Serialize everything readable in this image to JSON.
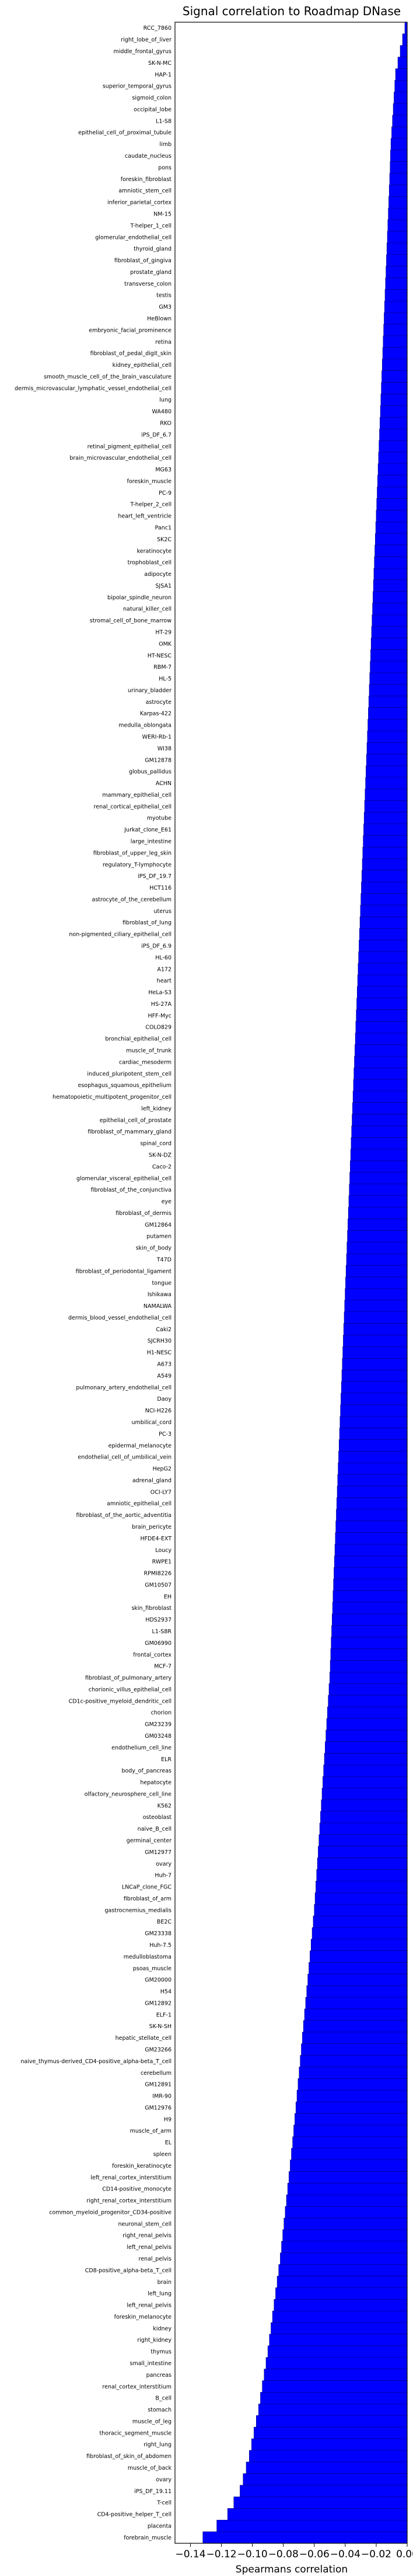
{
  "chart_data": {
    "type": "bar",
    "orientation": "horizontal",
    "title": "Signal correlation to Roadmap DNase",
    "xlabel": "Spearmans correlation",
    "ylabel": "",
    "xlim": [
      -0.15,
      0.0
    ],
    "xticks": [
      -0.14,
      -0.12,
      -0.1,
      -0.08,
      -0.06,
      -0.04,
      -0.02,
      0.0
    ],
    "xtick_labels": [
      "−0.14",
      "−0.12",
      "−0.10",
      "−0.08",
      "−0.06",
      "−0.04",
      "−0.02",
      "0.00"
    ],
    "grid": false,
    "bar_color": "#0000ff",
    "bar_edge_color": "#000080",
    "categories": [
      "RCC_7860",
      "right_lobe_of_liver",
      "middle_frontal_gyrus",
      "SK-N-MC",
      "HAP-1",
      "superior_temporal_gyrus",
      "sigmoid_colon",
      "occipital_lobe",
      "L1-S8",
      "epithelial_cell_of_proximal_tubule",
      "limb",
      "caudate_nucleus",
      "pons",
      "foreskin_fibroblast",
      "amniotic_stem_cell",
      "inferior_parietal_cortex",
      "NM-15",
      "T-helper_1_cell",
      "glomerular_endothelial_cell",
      "thyroid_gland",
      "fibroblast_of_gingiva",
      "prostate_gland",
      "transverse_colon",
      "testis",
      "GM3",
      "HeBlown",
      "embryonic_facial_prominence",
      "retina",
      "fibroblast_of_pedal_digit_skin",
      "kidney_epithelial_cell",
      "smooth_muscle_cell_of_the_brain_vasculature",
      "dermis_microvascular_lymphatic_vessel_endothelial_cell",
      "lung",
      "WA480",
      "RKO",
      "iPS_DF_6.7",
      "retinal_pigment_epithelial_cell",
      "brain_microvascular_endothelial_cell",
      "MG63",
      "foreskin_muscle",
      "PC-9",
      "T-helper_2_cell",
      "heart_left_ventricle",
      "Panc1",
      "SK2C",
      "keratinocyte",
      "trophoblast_cell",
      "adipocyte",
      "SJSA1",
      "bipolar_spindle_neuron",
      "natural_killer_cell",
      "stromal_cell_of_bone_marrow",
      "HT-29",
      "OMK",
      "HT-NESC",
      "RBM-7",
      "HL-5",
      "urinary_bladder",
      "astrocyte",
      "Karpas-422",
      "medulla_oblongata",
      "WERI-Rb-1",
      "WI38",
      "GM12878",
      "globus_pallidus",
      "ACHN",
      "mammary_epithelial_cell",
      "renal_cortical_epithelial_cell",
      "myotube",
      "Jurkat_clone_E61",
      "large_intestine",
      "fibroblast_of_upper_leg_skin",
      "regulatory_T-lymphocyte",
      "iPS_DF_19.7",
      "HCT116",
      "astrocyte_of_the_cerebellum",
      "uterus",
      "fibroblast_of_lung",
      "non-pigmented_ciliary_epithelial_cell",
      "iPS_DF_6.9",
      "HL-60",
      "A172",
      "heart",
      "HeLa-S3",
      "HS-27A",
      "HFF-Myc",
      "COLO829",
      "bronchial_epithelial_cell",
      "muscle_of_trunk",
      "cardiac_mesoderm",
      "induced_pluripotent_stem_cell",
      "esophagus_squamous_epithelium",
      "hematopoietic_multipotent_progenitor_cell",
      "left_kidney",
      "epithelial_cell_of_prostate",
      "fibroblast_of_mammary_gland",
      "spinal_cord",
      "SK-N-DZ",
      "Caco-2",
      "glomerular_visceral_epithelial_cell",
      "fibroblast_of_the_conjunctiva",
      "eye",
      "fibroblast_of_dermis",
      "GM12864",
      "putamen",
      "skin_of_body",
      "T47D",
      "fibroblast_of_periodontal_ligament",
      "tongue",
      "Ishikawa",
      "NAMALWA",
      "dermis_blood_vessel_endothelial_cell",
      "Caki2",
      "SJCRH30",
      "H1-NESC",
      "A673",
      "A549",
      "pulmonary_artery_endothelial_cell",
      "Daoy",
      "NCI-H226",
      "umbilical_cord",
      "PC-3",
      "epidermal_melanocyte",
      "endothelial_cell_of_umbilical_vein",
      "HepG2",
      "adrenal_gland",
      "OCI-LY7",
      "amniotic_epithelial_cell",
      "fibroblast_of_the_aortic_adventitia",
      "brain_pericyte",
      "HFDE4-EXT",
      "Loucy",
      "RWPE1",
      "RPMI8226",
      "GM10507",
      "EH",
      "skin_fibroblast",
      "HDS2937",
      "L1-S8R",
      "GM06990",
      "frontal_cortex",
      "MCF-7",
      "fibroblast_of_pulmonary_artery",
      "chorionic_villus_epithelial_cell",
      "CD1c-positive_myeloid_dendritic_cell",
      "chorion",
      "GM23239",
      "GM03248",
      "endothelium_cell_line",
      "ELR",
      "body_of_pancreas",
      "hepatocyte",
      "olfactory_neurosphere_cell_line",
      "K562",
      "osteoblast",
      "naive_B_cell",
      "germinal_center",
      "GM12977",
      "ovary",
      "Huh-7",
      "LNCaP_clone_FGC",
      "fibroblast_of_arm",
      "gastrocnemius_medialis",
      "BE2C",
      "GM23338",
      "Huh-7.5",
      "medulloblastoma",
      "psoas_muscle",
      "GM20000",
      "H54",
      "GM12892",
      "ELF-1",
      "SK-N-SH",
      "hepatic_stellate_cell",
      "GM23266",
      "naive_thymus-derived_CD4-positive_alpha-beta_T_cell",
      "cerebellum",
      "GM12891",
      "IMR-90",
      "GM12976",
      "H9",
      "muscle_of_arm",
      "EL",
      "spleen",
      "foreskin_keratinocyte",
      "left_renal_cortex_interstitium",
      "CD14-positive_monocyte",
      "right_renal_cortex_interstitium",
      "common_myeloid_progenitor_CD34-positive",
      "neuronal_stem_cell",
      "right_renal_pelvis",
      "left_renal_pelvis",
      "renal_pelvis",
      "CD8-positive_alpha-beta_T_cell",
      "brain",
      "left_lung",
      "left_renal_pelvis",
      "foreskin_melanocyte",
      "kidney",
      "right_kidney",
      "thymus",
      "small_intestine",
      "pancreas",
      "renal_cortex_interstitium",
      "B_cell",
      "stomach",
      "muscle_of_leg",
      "thoracic_segment_muscle",
      "right_lung",
      "fibroblast_of_skin_of_abdomen",
      "muscle_of_back",
      "ovary",
      "iPS_DF_19.11",
      "T-cell",
      "CD4-positive_helper_T_cell",
      "placenta",
      "forebrain_muscle"
    ],
    "values": [
      -0.0015,
      -0.003,
      -0.0045,
      -0.006,
      -0.0075,
      -0.008,
      -0.0085,
      -0.009,
      -0.0095,
      -0.01,
      -0.0105,
      -0.0108,
      -0.011,
      -0.0113,
      -0.0116,
      -0.0119,
      -0.0122,
      -0.0125,
      -0.0128,
      -0.0131,
      -0.0134,
      -0.0137,
      -0.014,
      -0.0143,
      -0.0146,
      -0.0149,
      -0.0152,
      -0.0155,
      -0.0158,
      -0.0161,
      -0.0164,
      -0.0167,
      -0.017,
      -0.0173,
      -0.0176,
      -0.0179,
      -0.0182,
      -0.0185,
      -0.0188,
      -0.0191,
      -0.0194,
      -0.0197,
      -0.02,
      -0.0203,
      -0.0206,
      -0.0209,
      -0.0212,
      -0.0215,
      -0.0218,
      -0.0221,
      -0.0224,
      -0.0227,
      -0.023,
      -0.0233,
      -0.0236,
      -0.0239,
      -0.0242,
      -0.0245,
      -0.0248,
      -0.0251,
      -0.0254,
      -0.0257,
      -0.026,
      -0.0263,
      -0.0266,
      -0.0269,
      -0.0272,
      -0.0275,
      -0.0278,
      -0.0281,
      -0.0284,
      -0.0287,
      -0.029,
      -0.0293,
      -0.0296,
      -0.0299,
      -0.0302,
      -0.0305,
      -0.0308,
      -0.0311,
      -0.0314,
      -0.0317,
      -0.032,
      -0.0323,
      -0.0326,
      -0.0329,
      -0.0332,
      -0.0335,
      -0.0338,
      -0.0341,
      -0.0344,
      -0.0347,
      -0.035,
      -0.0353,
      -0.0356,
      -0.0359,
      -0.0362,
      -0.0365,
      -0.0368,
      -0.0371,
      -0.0374,
      -0.0377,
      -0.038,
      -0.0383,
      -0.0386,
      -0.0389,
      -0.0392,
      -0.0395,
      -0.0398,
      -0.0401,
      -0.0404,
      -0.0407,
      -0.041,
      -0.0413,
      -0.0416,
      -0.0419,
      -0.0422,
      -0.0425,
      -0.0428,
      -0.0431,
      -0.0434,
      -0.0437,
      -0.044,
      -0.0443,
      -0.0446,
      -0.0449,
      -0.0452,
      -0.0455,
      -0.0458,
      -0.0461,
      -0.0464,
      -0.0467,
      -0.047,
      -0.0473,
      -0.0476,
      -0.0479,
      -0.0482,
      -0.0485,
      -0.0488,
      -0.0491,
      -0.0494,
      -0.0497,
      -0.05,
      -0.0505,
      -0.051,
      -0.0515,
      -0.052,
      -0.0525,
      -0.053,
      -0.0535,
      -0.054,
      -0.0545,
      -0.055,
      -0.0555,
      -0.056,
      -0.0565,
      -0.057,
      -0.0575,
      -0.058,
      -0.0585,
      -0.059,
      -0.0595,
      -0.06,
      -0.0607,
      -0.0614,
      -0.0621,
      -0.0628,
      -0.0635,
      -0.0642,
      -0.0649,
      -0.0656,
      -0.0663,
      -0.067,
      -0.0677,
      -0.0684,
      -0.0691,
      -0.0698,
      -0.0705,
      -0.0712,
      -0.0719,
      -0.0726,
      -0.0733,
      -0.074,
      -0.0748,
      -0.0756,
      -0.0764,
      -0.0772,
      -0.078,
      -0.0788,
      -0.0796,
      -0.0804,
      -0.0812,
      -0.082,
      -0.083,
      -0.084,
      -0.085,
      -0.086,
      -0.087,
      -0.088,
      -0.089,
      -0.09,
      -0.0912,
      -0.0924,
      -0.0936,
      -0.0948,
      -0.096,
      -0.0975,
      -0.099,
      -0.1005,
      -0.102,
      -0.104,
      -0.106,
      -0.108,
      -0.112,
      -0.116,
      -0.123,
      -0.132
    ]
  }
}
